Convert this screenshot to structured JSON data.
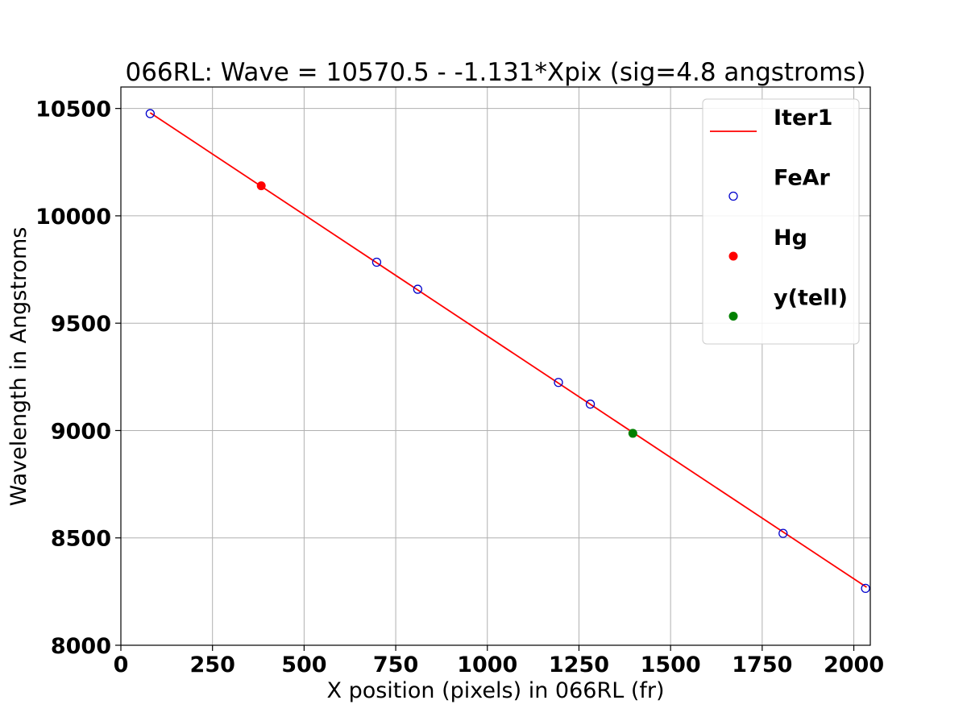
{
  "chart_data": {
    "type": "scatter",
    "title": "066RL:  Wave = 10570.5 - -1.131*Xpix (sig=4.8 angstroms)",
    "xlabel": "X position (pixels) in 066RL (fr)",
    "ylabel": "Wavelength in Angstroms",
    "xlim": [
      0,
      2045
    ],
    "ylim": [
      8000,
      10600
    ],
    "xticks": [
      0,
      250,
      500,
      750,
      1000,
      1250,
      1500,
      1750,
      2000
    ],
    "yticks": [
      8000,
      8500,
      9000,
      9500,
      10000,
      10500
    ],
    "grid": true,
    "legend_position": "top-right",
    "fit_line": {
      "name": "Iter1",
      "color": "#ff0000",
      "x": [
        80,
        2035
      ],
      "y": [
        10480,
        8270
      ]
    },
    "series": [
      {
        "name": "FeAr",
        "marker": "open-circle",
        "color": "#0000cc",
        "x": [
          80,
          698,
          810,
          1194,
          1281,
          1807,
          2032
        ],
        "y": [
          10476,
          9784,
          9658,
          9224,
          9123,
          8521,
          8265
        ]
      },
      {
        "name": "Hg",
        "marker": "filled-circle",
        "color": "#ff0000",
        "x": [
          383
        ],
        "y": [
          10140
        ]
      },
      {
        "name": "y(tell)",
        "marker": "filled-circle",
        "color": "#008000",
        "x": [
          1397
        ],
        "y": [
          8987
        ]
      }
    ]
  }
}
